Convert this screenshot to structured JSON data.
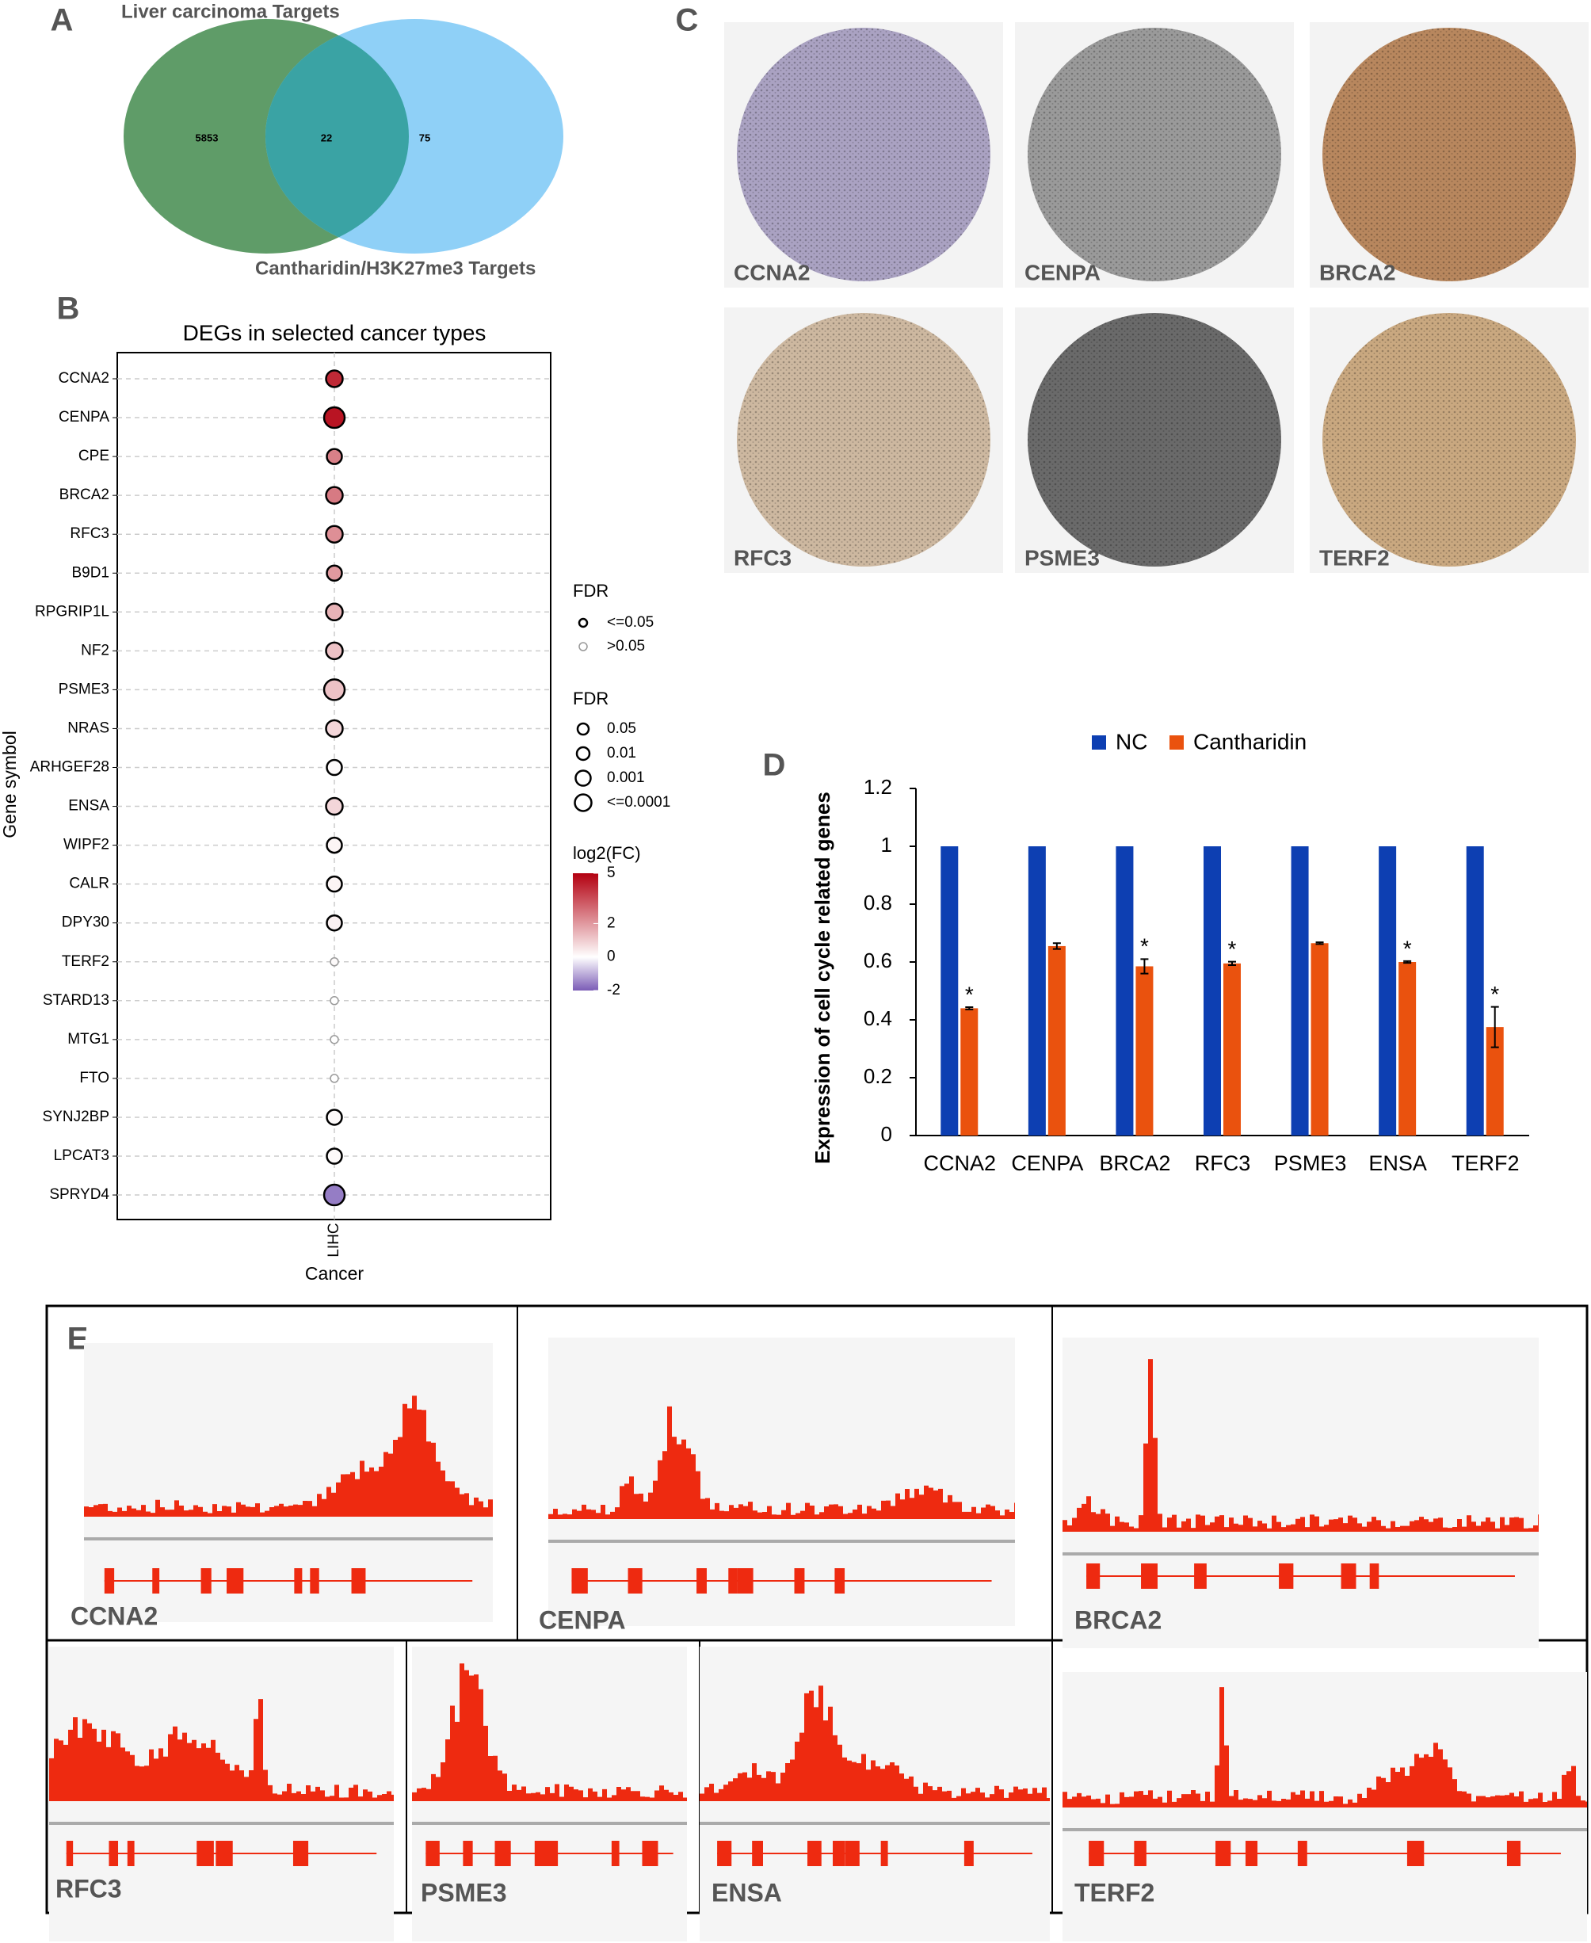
{
  "panel_labels": [
    "A",
    "B",
    "C",
    "D",
    "E"
  ],
  "chart_data": [
    {
      "type": "venn",
      "sets": [
        {
          "name": "Liver carcinoma Targets",
          "color": "#5f9c68"
        },
        {
          "name": "Cantharidin/H3K27me3 Targets",
          "color": "#8fd0f7"
        }
      ],
      "overlap_color": "#3aa3a4",
      "values": [
        5853,
        22,
        75
      ]
    },
    {
      "type": "dot",
      "title": "DEGs in selected cancer types",
      "categories": [
        "CCNA2",
        "CENPA",
        "CPE",
        "BRCA2",
        "RFC3",
        "B9D1",
        "RPGRIP1L",
        "NF2",
        "PSME3",
        "NRAS",
        "ARHGEF28",
        "ENSA",
        "WIPF2",
        "CALR",
        "DPY30",
        "TERF2",
        "STARD13",
        "MTG1",
        "FTO",
        "SYNJ2BP",
        "LPCAT3",
        "SPRYD4"
      ],
      "x_categories": [
        "LIHC"
      ],
      "ylabel": "Gene symbol",
      "xlabel": "Cancer",
      "values": [
        4.2,
        4.6,
        2.5,
        2.6,
        2.2,
        2.0,
        1.5,
        1.2,
        1.2,
        0.8,
        0.1,
        0.8,
        0.2,
        0.2,
        0.3,
        0.1,
        0,
        0,
        0,
        0.1,
        0.1,
        -1.6
      ],
      "fdr": [
        0.001,
        0.0001,
        0.01,
        0.001,
        0.001,
        0.01,
        0.001,
        0.001,
        0.0001,
        0.001,
        0.01,
        0.001,
        0.01,
        0.01,
        0.01,
        0.2,
        0.2,
        0.2,
        0.2,
        0.01,
        0.01,
        0.0001
      ],
      "grid": true,
      "legend_significance": {
        "title": "FDR",
        "labels": [
          "<=0.05",
          ">0.05"
        ],
        "colors": [
          "#000000",
          "#999999"
        ]
      },
      "legend_size": {
        "title": "FDR",
        "levels": [
          0.05,
          0.01,
          0.001,
          {
            "value": 0.0001,
            "label": "<=0.0001"
          }
        ]
      },
      "colorbar": {
        "title": "log2(FC)",
        "lim": [
          -2,
          5
        ],
        "ticks": [
          5,
          2,
          0,
          -2
        ],
        "colors": [
          "#7b5cb6",
          "#ffffff",
          "#b30010"
        ]
      }
    },
    {
      "type": "bar",
      "ylabel": "Expression of cell cycle related genes",
      "categories": [
        "CCNA2",
        "CENPA",
        "BRCA2",
        "RFC3",
        "PSME3",
        "ENSA",
        "TERF2"
      ],
      "series": [
        {
          "name": "NC",
          "color": "#0d3fb2",
          "values": [
            1,
            1,
            1,
            1,
            1,
            1,
            1
          ]
        },
        {
          "name": "Cantharidin",
          "color": "#ea520e",
          "values": [
            0.44,
            0.655,
            0.585,
            0.595,
            0.665,
            0.6,
            0.375
          ],
          "errors": [
            0.004,
            0.01,
            0.025,
            0.006,
            0.003,
            0.003,
            0.07
          ]
        }
      ],
      "significance": [
        "*",
        null,
        "*",
        "*",
        null,
        "*",
        "*"
      ],
      "ylim": [
        0,
        1.2
      ],
      "yticks": [
        0,
        0.2,
        0.4,
        0.6,
        0.8,
        1,
        1.2
      ]
    }
  ],
  "ihc": {
    "labels": [
      "CCNA2",
      "CENPA",
      "BRCA2",
      "RFC3",
      "PSME3",
      "TERF2"
    ]
  },
  "tracks": {
    "labels": [
      "CCNA2",
      "CENPA",
      "BRCA2",
      "RFC3",
      "PSME3",
      "ENSA",
      "TERF2"
    ]
  }
}
